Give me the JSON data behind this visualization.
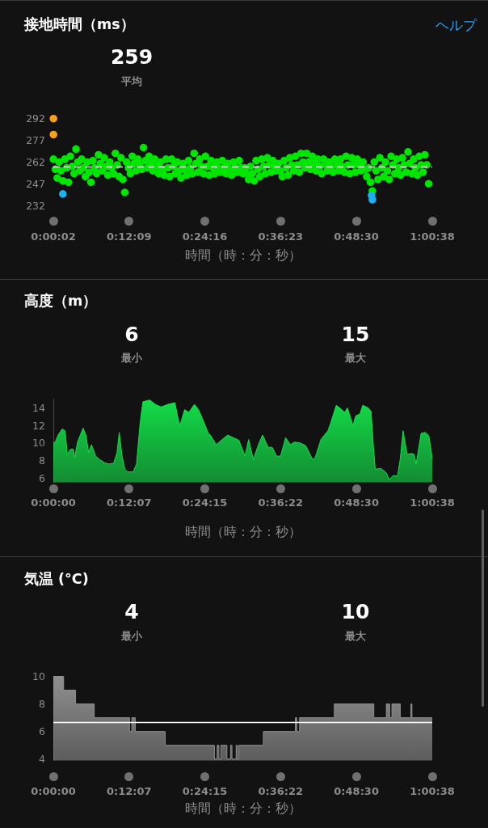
{
  "chart_data": [
    {
      "type": "scatter",
      "title": "接地時間（ms）",
      "annotations": [
        "259",
        "平均",
        "ヘルプ"
      ],
      "xlabel": "時間（時：分：秒）",
      "marker": "circle",
      "series": [
        {
          "color": "#00e600",
          "x": [
            0.001,
            0.006,
            0.011,
            0.016,
            0.021,
            0.026,
            0.031,
            0.036,
            0.041,
            0.046,
            0.051,
            0.056,
            0.061,
            0.066,
            0.071,
            0.076,
            0.081,
            0.086,
            0.091,
            0.096,
            0.101,
            0.106,
            0.111,
            0.116,
            0.121,
            0.126,
            0.131,
            0.136,
            0.141,
            0.146,
            0.151,
            0.156,
            0.161,
            0.166,
            0.171,
            0.176,
            0.181,
            0.186,
            0.191,
            0.196,
            0.201,
            0.206,
            0.211,
            0.216,
            0.221,
            0.226,
            0.231,
            0.236,
            0.241,
            0.246,
            0.251,
            0.256,
            0.261,
            0.266,
            0.271,
            0.276,
            0.281,
            0.286,
            0.291,
            0.296,
            0.301,
            0.306,
            0.311,
            0.316,
            0.321,
            0.326,
            0.331,
            0.336,
            0.341,
            0.346,
            0.351,
            0.356,
            0.361,
            0.366,
            0.371,
            0.376,
            0.381,
            0.386,
            0.391,
            0.396,
            0.401,
            0.406,
            0.411,
            0.416,
            0.421,
            0.426,
            0.431,
            0.436,
            0.441,
            0.446,
            0.451,
            0.456,
            0.461,
            0.466,
            0.471,
            0.476,
            0.481,
            0.486,
            0.491,
            0.496,
            0.501,
            0.506,
            0.511,
            0.516,
            0.521,
            0.526,
            0.531,
            0.536,
            0.541,
            0.546,
            0.551,
            0.556,
            0.561,
            0.566,
            0.571,
            0.576,
            0.581,
            0.586,
            0.591,
            0.596,
            0.601,
            0.606,
            0.611,
            0.616,
            0.621,
            0.626,
            0.631,
            0.636,
            0.641,
            0.646,
            0.651,
            0.656,
            0.661,
            0.666,
            0.671,
            0.676,
            0.681,
            0.686,
            0.691,
            0.696,
            0.701,
            0.706,
            0.711,
            0.716,
            0.721,
            0.726,
            0.731,
            0.736,
            0.741,
            0.746,
            0.751,
            0.756,
            0.761,
            0.766,
            0.771,
            0.776,
            0.781,
            0.786,
            0.791,
            0.796,
            0.801,
            0.806,
            0.811,
            0.816,
            0.821,
            0.826,
            0.831,
            0.836,
            0.841,
            0.846,
            0.851,
            0.856,
            0.861,
            0.866,
            0.871,
            0.876,
            0.881,
            0.886,
            0.891,
            0.896,
            0.901,
            0.906,
            0.911,
            0.916,
            0.921,
            0.926,
            0.931,
            0.936,
            0.941,
            0.946,
            0.951,
            0.956,
            0.961,
            0.966,
            0.971,
            0.976,
            0.981,
            0.986,
            0.991,
            0.996,
            1.001
          ],
          "values": [
            264,
            257,
            251,
            262,
            256,
            249,
            264,
            258,
            248,
            266,
            259,
            254,
            271,
            262,
            256,
            264,
            258,
            252,
            262,
            255,
            248,
            263,
            258,
            254,
            267,
            261,
            256,
            265,
            259,
            253,
            262,
            258,
            254,
            268,
            260,
            252,
            265,
            250,
            241,
            262,
            258,
            254,
            266,
            261,
            256,
            264,
            260,
            257,
            272,
            263,
            258,
            266,
            261,
            256,
            264,
            259,
            254,
            262,
            257,
            253,
            264,
            258,
            252,
            264,
            259,
            254,
            262,
            256,
            251,
            261,
            257,
            253,
            263,
            258,
            254,
            268,
            261,
            255,
            264,
            259,
            254,
            266,
            259,
            253,
            263,
            258,
            254,
            262,
            258,
            255,
            263,
            258,
            254,
            261,
            257,
            253,
            262,
            258,
            255,
            263,
            258,
            254,
            258,
            254,
            250,
            259,
            254,
            249,
            263,
            257,
            252,
            264,
            259,
            254,
            265,
            260,
            255,
            263,
            259,
            256,
            261,
            256,
            252,
            263,
            258,
            253,
            265,
            260,
            256,
            266,
            260,
            255,
            268,
            262,
            258,
            268,
            262,
            257,
            266,
            261,
            256,
            264,
            259,
            254,
            264,
            260,
            256,
            262,
            258,
            255,
            264,
            260,
            256,
            264,
            259,
            255,
            266,
            260,
            254,
            265,
            260,
            255,
            264,
            260,
            256,
            262,
            257,
            252,
            258,
            248,
            242,
            262,
            256,
            250,
            265,
            258,
            252,
            262,
            256,
            250,
            266,
            260,
            254,
            264,
            258,
            253,
            265,
            260,
            255,
            269,
            261,
            254,
            264,
            258,
            253,
            266,
            260,
            255,
            267,
            260,
            247
          ]
        },
        {
          "color": "#1cb0ee",
          "x": [
            0.026,
            0.849,
            0.851
          ],
          "values": [
            240,
            239,
            236
          ]
        },
        {
          "color": "#f5a020",
          "x": [
            0.001,
            0.001
          ],
          "values": [
            292,
            281
          ]
        }
      ],
      "xlim": [
        0.0006,
        1.0106
      ],
      "xticks": [
        {
          "value": 0.0006,
          "label": "0:00:02"
        },
        {
          "value": 0.2025,
          "label": "0:12:09"
        },
        {
          "value": 0.4044,
          "label": "0:24:16"
        },
        {
          "value": 0.6064,
          "label": "0:36:23"
        },
        {
          "value": 0.8083,
          "label": "0:48:30"
        },
        {
          "value": 1.0106,
          "label": "1:00:38"
        }
      ],
      "ylim": [
        232,
        292
      ],
      "yticks": [
        232,
        247,
        262,
        277,
        292
      ],
      "ref_lines": [
        {
          "axis": "y",
          "value": 259,
          "color": "#e6e6e6",
          "line_style": "dashed"
        }
      ]
    },
    {
      "type": "area",
      "title": "高度（m）",
      "annotations": [
        "6",
        "最小",
        "15",
        "最大"
      ],
      "xlabel": "時間（時：分：秒）",
      "color": "#14dc48",
      "x": [
        0,
        0.0052,
        0.0126,
        0.0237,
        0.0312,
        0.0349,
        0.0371,
        0.046,
        0.0534,
        0.0571,
        0.0646,
        0.0794,
        0.0868,
        0.0942,
        0.1017,
        0.1128,
        0.1239,
        0.1388,
        0.1499,
        0.161,
        0.1699,
        0.1759,
        0.1833,
        0.1907,
        0.1981,
        0.213,
        0.2219,
        0.2315,
        0.2389,
        0.2575,
        0.2723,
        0.2872,
        0.3057,
        0.3243,
        0.3317,
        0.3376,
        0.3502,
        0.3614,
        0.3762,
        0.3873,
        0.4022,
        0.4133,
        0.4207,
        0.4341,
        0.4504,
        0.4652,
        0.4801,
        0.4949,
        0.5112,
        0.5209,
        0.5335,
        0.5469,
        0.558,
        0.5728,
        0.584,
        0.5951,
        0.6062,
        0.6196,
        0.6322,
        0.6433,
        0.6582,
        0.673,
        0.6915,
        0.699,
        0.7138,
        0.7324,
        0.7398,
        0.7546,
        0.7694,
        0.7769,
        0.7843,
        0.7991,
        0.8066,
        0.8177,
        0.8251,
        0.84,
        0.8474,
        0.8533,
        0.8585,
        0.8733,
        0.8882,
        0.8956,
        0.9067,
        0.9179,
        0.9253,
        0.9327,
        0.9438,
        0.955,
        0.9624,
        0.9676,
        0.9809,
        0.9921,
        1.0017,
        1.0106
      ],
      "values": [
        10.0,
        10.1,
        10.9,
        11.6,
        11.4,
        9.8,
        8.7,
        9.3,
        9.3,
        8.3,
        10.1,
        11.7,
        10.9,
        8.9,
        9.8,
        8.5,
        8.1,
        7.7,
        7.6,
        7.7,
        8.9,
        11.2,
        8.5,
        7.0,
        6.7,
        6.7,
        7.6,
        12.3,
        14.7,
        14.9,
        14.4,
        14.1,
        14.4,
        14.6,
        13.0,
        12.0,
        13.8,
        13.5,
        14.4,
        13.8,
        12.3,
        11.1,
        10.8,
        9.8,
        10.4,
        10.9,
        10.6,
        10.3,
        8.5,
        10.4,
        8.1,
        9.8,
        10.9,
        9.5,
        9.5,
        8.5,
        8.5,
        10.6,
        9.8,
        10.1,
        10.0,
        9.7,
        8.1,
        8.4,
        10.4,
        11.4,
        12.3,
        14.3,
        13.8,
        13.5,
        14.0,
        12.0,
        13.1,
        13.3,
        14.3,
        14.0,
        13.6,
        9.8,
        7.0,
        7.1,
        6.6,
        5.8,
        6.3,
        6.2,
        8.2,
        11.4,
        8.7,
        8.8,
        8.7,
        7.6,
        11.1,
        11.2,
        10.8,
        8.2
      ],
      "xlim": [
        0,
        1.0106
      ],
      "xticks": [
        {
          "value": 0,
          "label": "0:00:00"
        },
        {
          "value": 0.2019,
          "label": "0:12:07"
        },
        {
          "value": 0.4042,
          "label": "0:24:15"
        },
        {
          "value": 0.6061,
          "label": "0:36:22"
        },
        {
          "value": 0.8083,
          "label": "0:48:30"
        },
        {
          "value": 1.0106,
          "label": "1:00:38"
        }
      ],
      "ylim": [
        5.5,
        15
      ],
      "yticks": [
        6,
        8,
        10,
        12,
        14
      ]
    },
    {
      "type": "area",
      "title": "気温 (°C)",
      "annotations": [
        "4",
        "最小",
        "10",
        "最大"
      ],
      "xlabel": "時間（時：分：秒）",
      "color": "#8f8f8f",
      "x": [
        0,
        0.0275,
        0.0275,
        0.0594,
        0.0594,
        0.1091,
        0.1091,
        0.2033,
        0.2033,
        0.2092,
        0.2092,
        0.2189,
        0.2189,
        0.2983,
        0.2983,
        0.4296,
        0.4296,
        0.437,
        0.437,
        0.4415,
        0.4415,
        0.4467,
        0.4467,
        0.463,
        0.463,
        0.4727,
        0.4727,
        0.4764,
        0.4764,
        0.4875,
        0.4875,
        0.4912,
        0.4912,
        0.4949,
        0.4949,
        0.5602,
        0.5602,
        0.6455,
        0.6455,
        0.6493,
        0.6493,
        0.6567,
        0.6567,
        0.7494,
        0.7494,
        0.8548,
        0.8548,
        0.8882,
        0.8882,
        0.8971,
        0.8971,
        0.903,
        0.903,
        0.9253,
        0.9253,
        0.9535,
        0.9535,
        0.9564,
        0.9564,
        1.0106
      ],
      "values": [
        10,
        10,
        9,
        9,
        8,
        8,
        7,
        7,
        6,
        6,
        7,
        7,
        6,
        6,
        5,
        5,
        4,
        4,
        5,
        5,
        4,
        4,
        5,
        5,
        4,
        4,
        5,
        5,
        4,
        4,
        5,
        5,
        4,
        4,
        5,
        5,
        6,
        6,
        7,
        7,
        6,
        6,
        7,
        7,
        8,
        8,
        7,
        7,
        8,
        8,
        7,
        7,
        8,
        8,
        7,
        7,
        8,
        8,
        7,
        7
      ],
      "xlim": [
        0,
        1.0106
      ],
      "xticks": [
        {
          "value": 0,
          "label": "0:00:00"
        },
        {
          "value": 0.2019,
          "label": "0:12:07"
        },
        {
          "value": 0.4042,
          "label": "0:24:15"
        },
        {
          "value": 0.6061,
          "label": "0:36:22"
        },
        {
          "value": 0.8083,
          "label": "0:48:30"
        },
        {
          "value": 1.0106,
          "label": "1:00:38"
        }
      ],
      "ylim": [
        3.9,
        10
      ],
      "yticks": [
        4,
        6,
        8,
        10
      ],
      "ref_lines": [
        {
          "axis": "y",
          "value": 6.7,
          "color": "#ffffff"
        }
      ]
    }
  ]
}
